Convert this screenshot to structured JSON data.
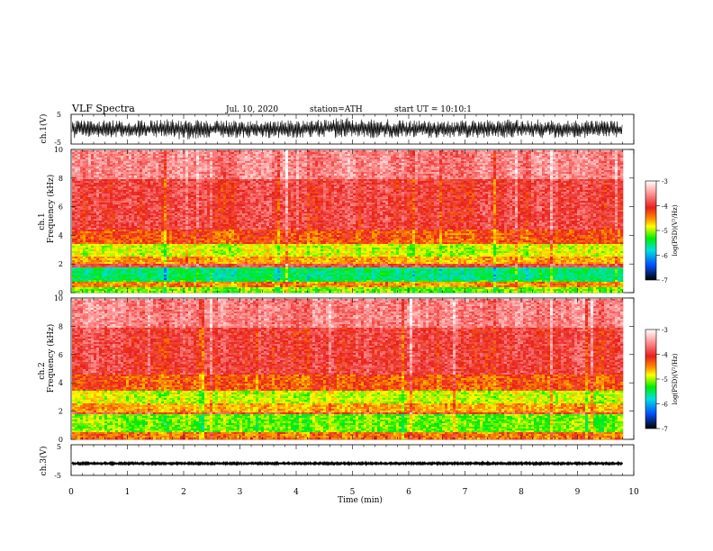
{
  "header": {
    "title": "VLF Spectra",
    "date": "Jul. 10, 2020",
    "station": "station=ATH",
    "start": "start UT = 10:10:1"
  },
  "colorbar": {
    "label": "log(PSD)(V²/Hz)",
    "ticks": [
      "-3",
      "-4",
      "-5",
      "-6",
      "-7"
    ],
    "stops": [
      "#ffffff",
      "#ff9a9a",
      "#e8201b",
      "#ff8c00",
      "#ffff00",
      "#00ee00",
      "#00e0e0",
      "#0050ff",
      "#000000"
    ]
  },
  "chart_data": [
    {
      "type": "line",
      "panel": "ch1-waveform",
      "ylabel": "ch.1(V)",
      "ylim": [
        -5,
        5
      ],
      "yticks": [
        "5",
        "-5"
      ],
      "xlim": [
        0,
        10
      ],
      "data_end_min": 9.8,
      "envelope": {
        "x": [
          0,
          1,
          2,
          3,
          4,
          5,
          6,
          7,
          8,
          9,
          9.8
        ],
        "max": [
          3,
          3,
          3.5,
          3,
          3,
          4,
          3,
          3,
          3.5,
          3,
          3
        ],
        "min": [
          -3,
          -3,
          -3.5,
          -3,
          -3,
          -3,
          -3,
          -3,
          -3,
          -3,
          -3
        ]
      }
    },
    {
      "type": "heatmap",
      "panel": "ch1-spectrogram",
      "ylabel_top": "ch.1",
      "ylabel": "Frequency (kHz)",
      "ylim": [
        0,
        10
      ],
      "yticks": [
        "10",
        "8",
        "6",
        "4",
        "2",
        "0"
      ],
      "xlim": [
        0,
        10
      ],
      "data_end_min": 9.8,
      "bands": [
        {
          "from": 0,
          "to": 0.5,
          "log_psd": -5.2
        },
        {
          "from": 0.5,
          "to": 0.8,
          "log_psd": -4.5
        },
        {
          "from": 0.8,
          "to": 1.0,
          "log_psd": -5.5
        },
        {
          "from": 1.0,
          "to": 1.8,
          "log_psd": -5.7
        },
        {
          "from": 1.8,
          "to": 2.1,
          "log_psd": -3.9
        },
        {
          "from": 2.1,
          "to": 2.6,
          "log_psd": -4.6
        },
        {
          "from": 2.6,
          "to": 3.5,
          "log_psd": -5.0
        },
        {
          "from": 3.5,
          "to": 4.5,
          "log_psd": -4.3
        },
        {
          "from": 4.5,
          "to": 8.0,
          "log_psd": -3.95
        },
        {
          "from": 8.0,
          "to": 10.0,
          "log_psd": -3.6
        }
      ]
    },
    {
      "type": "heatmap",
      "panel": "ch2-spectrogram",
      "ylabel_top": "ch.2",
      "ylabel": "Frequency (kHz)",
      "ylim": [
        0,
        10
      ],
      "yticks": [
        "10",
        "8",
        "6",
        "4",
        "2",
        "0"
      ],
      "xlim": [
        0,
        10
      ],
      "data_end_min": 9.8,
      "bands": [
        {
          "from": 0,
          "to": 0.6,
          "log_psd": -4.4
        },
        {
          "from": 0.6,
          "to": 1.8,
          "log_psd": -5.2
        },
        {
          "from": 1.8,
          "to": 2.0,
          "log_psd": -3.9
        },
        {
          "from": 2.0,
          "to": 2.6,
          "log_psd": -4.6
        },
        {
          "from": 2.6,
          "to": 3.5,
          "log_psd": -5.0
        },
        {
          "from": 3.5,
          "to": 4.6,
          "log_psd": -4.3
        },
        {
          "from": 4.6,
          "to": 8.0,
          "log_psd": -3.95
        },
        {
          "from": 8.0,
          "to": 10.0,
          "log_psd": -3.6
        }
      ]
    },
    {
      "type": "line",
      "panel": "ch3-waveform",
      "ylabel": "ch.3(V)",
      "ylim": [
        -5,
        5
      ],
      "yticks": [
        "5",
        "-5"
      ],
      "xlim": [
        0,
        10
      ],
      "data_end_min": 9.8,
      "envelope": {
        "x": [
          0,
          9.8
        ],
        "max": [
          -0.8,
          -0.8
        ],
        "min": [
          -1.4,
          -1.4
        ]
      }
    }
  ],
  "xaxis": {
    "label": "Time (min)",
    "ticks": [
      "0",
      "1",
      "2",
      "3",
      "4",
      "5",
      "6",
      "7",
      "8",
      "9",
      "10"
    ]
  }
}
